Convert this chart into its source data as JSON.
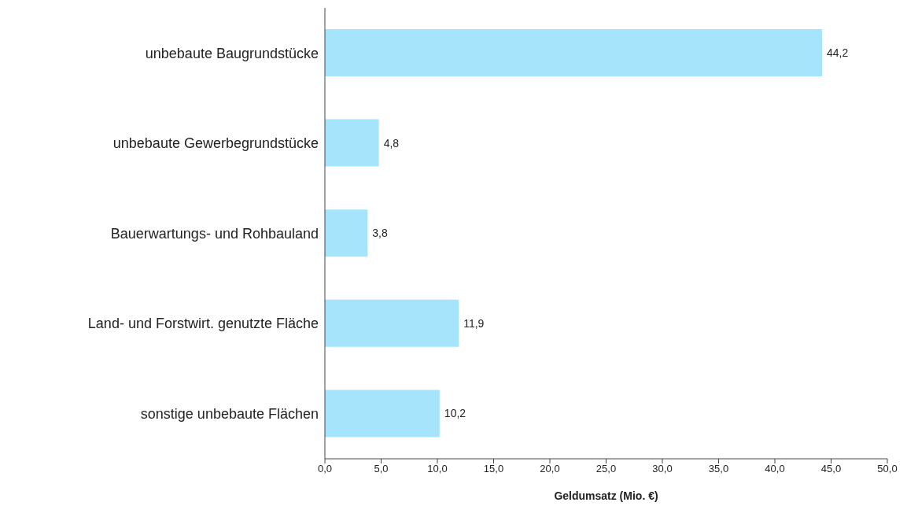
{
  "chart_data": {
    "type": "bar",
    "orientation": "horizontal",
    "categories": [
      "unbebaute Baugrundstücke",
      "unbebaute Gewerbegrundstücke",
      "Bauerwartungs- und Rohbauland",
      "Land- und Forstwirt. genutzte Fläche",
      "sonstige unbebaute Flächen"
    ],
    "values": [
      44.2,
      4.8,
      3.8,
      11.9,
      10.2
    ],
    "value_labels": [
      "44,2",
      "4,8",
      "3,8",
      "11,9",
      "10,2"
    ],
    "color": "#a6e4fb",
    "xlabel": "Geldumsatz (Mio. €)",
    "xlim": [
      0,
      50
    ],
    "xticks": [
      {
        "value": 0,
        "label": "0,0"
      },
      {
        "value": 5,
        "label": "5,0"
      },
      {
        "value": 10,
        "label": "10,0"
      },
      {
        "value": 15,
        "label": "15,0"
      },
      {
        "value": 20,
        "label": "20,0"
      },
      {
        "value": 25,
        "label": "25,0"
      },
      {
        "value": 30,
        "label": "30,0"
      },
      {
        "value": 35,
        "label": "35,0"
      },
      {
        "value": 40,
        "label": "40,0"
      },
      {
        "value": 45,
        "label": "45,0"
      },
      {
        "value": 50,
        "label": "50,0"
      }
    ],
    "grid": false,
    "legend": false
  }
}
